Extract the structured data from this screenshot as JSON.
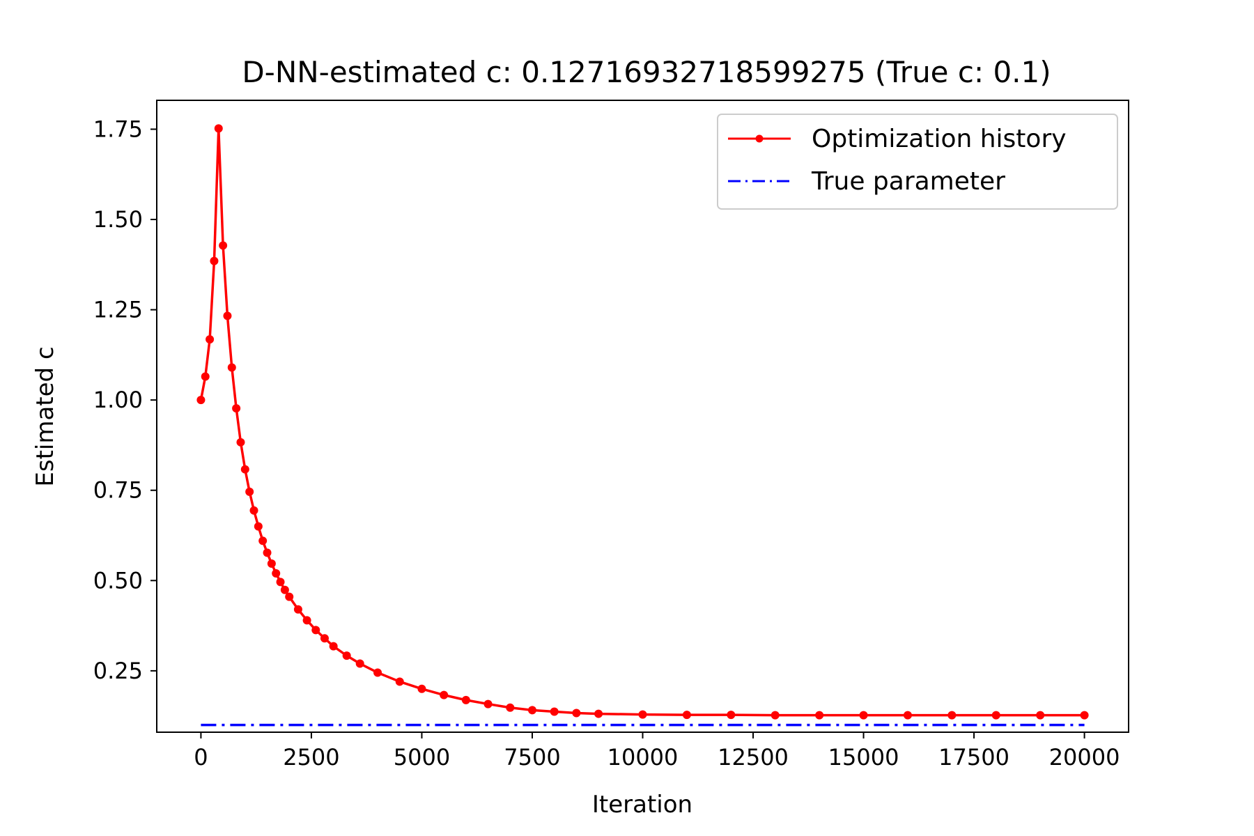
{
  "chart_data": {
    "type": "line",
    "title": "D-NN-estimated c: 0.12716932718599275 (True c: 0.1)",
    "xlabel": "Iteration",
    "ylabel": "Estimated c",
    "xlim": [
      -1000,
      21000
    ],
    "ylim": [
      0.08,
      1.83
    ],
    "xticks": [
      0,
      2500,
      5000,
      7500,
      10000,
      12500,
      15000,
      17500,
      20000
    ],
    "xtick_labels": [
      "0",
      "2500",
      "5000",
      "7500",
      "10000",
      "12500",
      "15000",
      "17500",
      "20000"
    ],
    "yticks": [
      0.25,
      0.5,
      0.75,
      1.0,
      1.25,
      1.5,
      1.75
    ],
    "ytick_labels": [
      "0.25",
      "0.50",
      "0.75",
      "1.00",
      "1.25",
      "1.50",
      "1.75"
    ],
    "grid": false,
    "legend_position": "top-right",
    "series": [
      {
        "name": "Optimization history",
        "color": "#ff0000",
        "style": "solid-with-dot-markers",
        "x": [
          0,
          100,
          200,
          300,
          400,
          500,
          600,
          700,
          800,
          900,
          1000,
          1100,
          1200,
          1300,
          1400,
          1500,
          1600,
          1700,
          1800,
          1900,
          2000,
          2200,
          2400,
          2600,
          2800,
          3000,
          3300,
          3600,
          4000,
          4500,
          5000,
          5500,
          6000,
          6500,
          7000,
          7500,
          8000,
          8500,
          9000,
          10000,
          11000,
          12000,
          13000,
          14000,
          15000,
          16000,
          17000,
          18000,
          19000,
          20000
        ],
        "y": [
          1.0,
          1.065,
          1.168,
          1.385,
          1.752,
          1.428,
          1.233,
          1.09,
          0.977,
          0.883,
          0.808,
          0.746,
          0.694,
          0.65,
          0.61,
          0.577,
          0.547,
          0.52,
          0.496,
          0.474,
          0.455,
          0.42,
          0.39,
          0.363,
          0.34,
          0.318,
          0.292,
          0.27,
          0.245,
          0.22,
          0.2,
          0.183,
          0.169,
          0.158,
          0.148,
          0.141,
          0.137,
          0.133,
          0.131,
          0.129,
          0.128,
          0.128,
          0.127,
          0.127,
          0.127,
          0.127,
          0.127,
          0.127,
          0.127,
          0.127
        ]
      },
      {
        "name": "True parameter",
        "color": "#0000ff",
        "style": "dash-dot",
        "x": [
          0,
          20000
        ],
        "y": [
          0.1,
          0.1
        ]
      }
    ]
  }
}
